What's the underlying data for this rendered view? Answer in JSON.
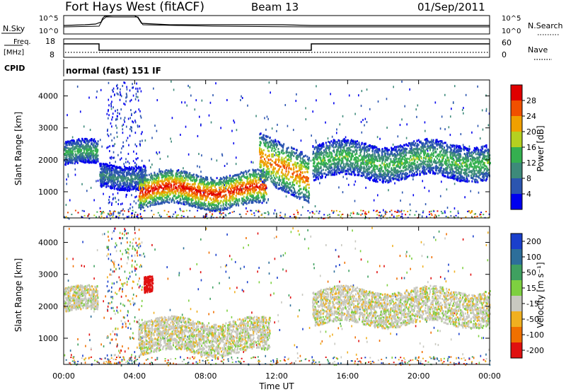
{
  "header": {
    "station": "Fort Hays West (fitACF)",
    "beam": "Beam 13",
    "date": "01/Sep/2011"
  },
  "top_panel": {
    "left_label": "N.Sky",
    "right_label": "N.Search",
    "left_ticks": [
      "10^5",
      "10^0"
    ],
    "right_ticks": [
      "10^5",
      "10^0"
    ]
  },
  "freq_panel": {
    "left_label_1": "Freq.",
    "left_label_2": "[MHz]",
    "right_label": "Nave",
    "left_ticks": [
      "18",
      "8"
    ],
    "right_ticks": [
      "60",
      "0"
    ]
  },
  "cpid_panel": {
    "label": "CPID",
    "text": "normal (fast) 151 IF"
  },
  "axes": {
    "ylabel": "Slant Range [km]",
    "xlabel": "Time UT",
    "y_ticks": [
      "1000",
      "2000",
      "3000",
      "4000"
    ],
    "x_ticks": [
      "00:00",
      "04:00",
      "08:00",
      "12:00",
      "16:00",
      "20:00",
      "00:00"
    ]
  },
  "power_scale": {
    "label": "Power [dB]",
    "ticks": [
      "4",
      "8",
      "12",
      "16",
      "20",
      "24",
      "28"
    ],
    "colors": [
      "#0000ee",
      "#2b55b0",
      "#3d8a7a",
      "#35b050",
      "#b5d020",
      "#f0a000",
      "#f05000",
      "#e00000"
    ]
  },
  "velocity_scale": {
    "label": "Velocity [m s⁻¹]",
    "ticks": [
      "200",
      "100",
      "50",
      "15",
      "-15",
      "-50",
      "-100",
      "-200"
    ],
    "colors": [
      "#1a3fcc",
      "#2d6e9a",
      "#3fa060",
      "#7ed040",
      "#c8c8c0",
      "#f0b020",
      "#f07000",
      "#e01010"
    ]
  },
  "chart_data": [
    {
      "type": "heatmap",
      "title": "Power [dB]",
      "xlabel": "Time UT",
      "ylabel": "Slant Range [km]",
      "xlim": [
        0,
        24
      ],
      "ylim": [
        180,
        4500
      ],
      "colorbar_range": [
        0,
        32
      ],
      "features": [
        {
          "t0": 0.0,
          "t1": 1.9,
          "r0": 1850,
          "r1": 2600,
          "peak_db": 14
        },
        {
          "t0": 2.0,
          "t1": 4.6,
          "r0": 1150,
          "r1": 1900,
          "peak_db": 10
        },
        {
          "t0": 4.2,
          "t1": 11.4,
          "r0": 560,
          "r1": 1600,
          "peak_db": 30
        },
        {
          "t0": 11.0,
          "t1": 13.8,
          "r0": 1000,
          "r1": 2500,
          "peak_db": 26
        },
        {
          "t0": 14.0,
          "t1": 24.0,
          "r0": 1450,
          "r1": 2550,
          "peak_db": 16
        }
      ]
    },
    {
      "type": "heatmap",
      "title": "Velocity [m s⁻¹]",
      "xlabel": "Time UT",
      "ylabel": "Slant Range [km]",
      "xlim": [
        0,
        24
      ],
      "ylim": [
        180,
        4500
      ],
      "colorbar_range": [
        -200,
        200
      ],
      "features": [
        {
          "t0": 0.0,
          "t1": 1.9,
          "r0": 1850,
          "r1": 2600,
          "velocity": 0
        },
        {
          "t0": 4.5,
          "t1": 5.0,
          "r0": 2480,
          "r1": 2980,
          "velocity": -220
        },
        {
          "t0": 4.2,
          "t1": 11.6,
          "r0": 560,
          "r1": 1600,
          "velocity": 0
        },
        {
          "t0": 14.0,
          "t1": 24.0,
          "r0": 1450,
          "r1": 2550,
          "velocity": 0
        }
      ]
    }
  ]
}
